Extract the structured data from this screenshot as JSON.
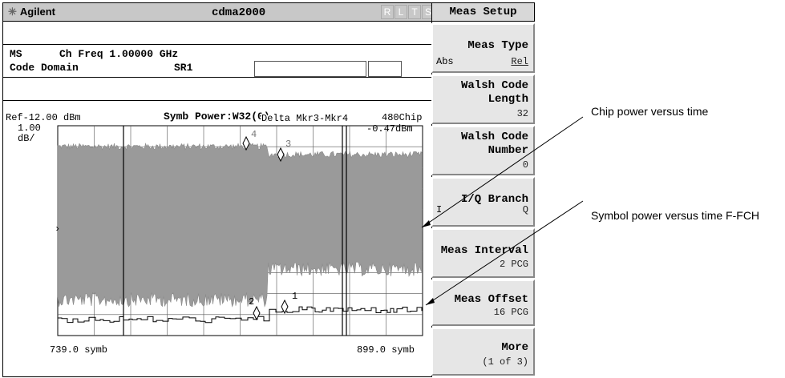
{
  "header": {
    "brand": "Agilent",
    "mode_title": "cdma2000",
    "indicators": [
      "R",
      "L",
      "T",
      "S"
    ]
  },
  "info": {
    "line1_mode": "MS",
    "line1_freq": "Ch Freq 1.00000 GHz",
    "line2_meas": "Code Domain",
    "line2_sr": "SR1"
  },
  "plot": {
    "ref_level": "Ref-12.00 dBm",
    "scale": "1.00",
    "scale_unit": "dB/",
    "title": "Symb Power:W32(0)",
    "marker_readout": "Delta Mkr3-Mkr4",
    "chip_label": "480Chip",
    "marker_value": "-0.47dBm",
    "x_start": "739.0 symb",
    "x_stop": "899.0 symb",
    "markers": [
      {
        "label": "4"
      },
      {
        "label": "3"
      },
      {
        "label": "2"
      },
      {
        "label": "1"
      }
    ]
  },
  "softkeys": {
    "header": "Meas Setup",
    "keys": [
      {
        "title": "Meas Type",
        "left": "Abs",
        "right": "Rel"
      },
      {
        "title": "Walsh Code Length",
        "sub": "32"
      },
      {
        "title": "Walsh Code Number",
        "sub": "0"
      },
      {
        "title": "I/Q Branch",
        "left": "I",
        "right": "Q"
      },
      {
        "title": "Meas Interval",
        "sub": "2 PCG"
      },
      {
        "title": "Meas Offset",
        "sub": "16 PCG"
      },
      {
        "title": "More",
        "sub": "(1 of 3)"
      }
    ]
  },
  "callouts": {
    "chip": "Chip power versus time",
    "symbol": "Symbol power versus time F-FCH"
  }
}
